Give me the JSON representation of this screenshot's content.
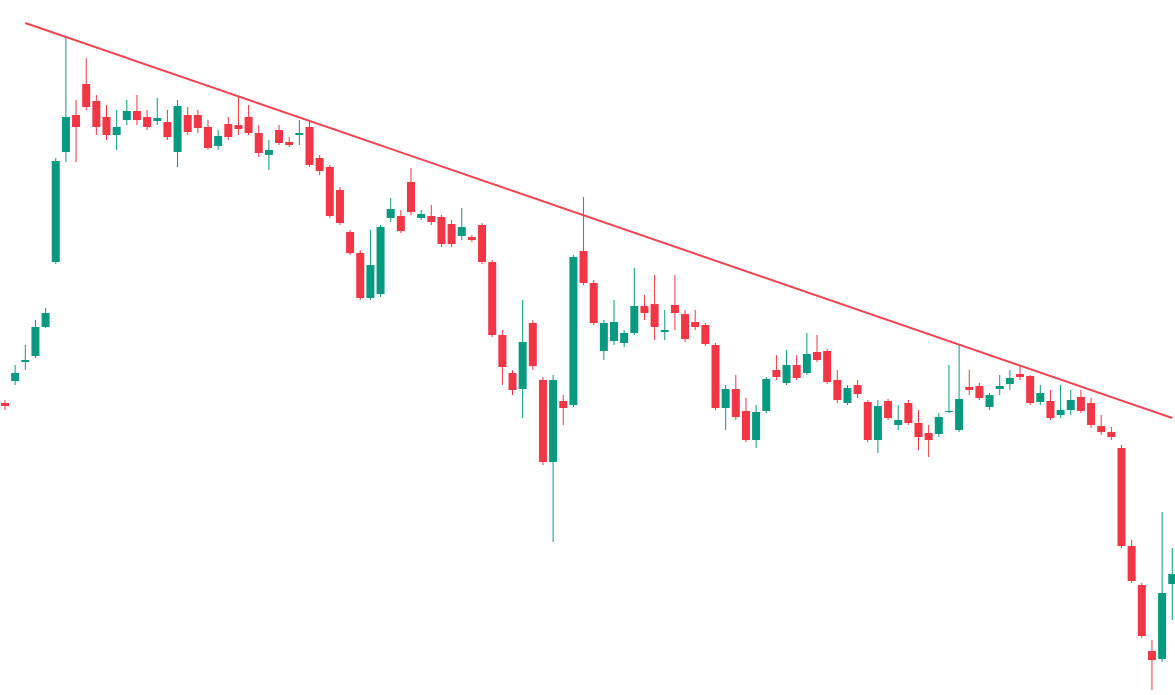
{
  "chart_data": {
    "type": "candlestick",
    "up_color": "#089981",
    "down_color": "#f23645",
    "ylim": [
      0,
      695
    ],
    "open": [
      292,
      314,
      333,
      339,
      368,
      433,
      543,
      580,
      611,
      594,
      578,
      560,
      575,
      584,
      578,
      574,
      573,
      543,
      580,
      580,
      568,
      549,
      571,
      570,
      578,
      562,
      540,
      565,
      553,
      560,
      568,
      537,
      528,
      505,
      463,
      442,
      397,
      401,
      477,
      479,
      513,
      477,
      479,
      478,
      471,
      459,
      458,
      470,
      433,
      360,
      322,
      306,
      372,
      315,
      233,
      294,
      290,
      444,
      412,
      344,
      354,
      352,
      362,
      389,
      391,
      363,
      390,
      381,
      373,
      370,
      350,
      287,
      306,
      284,
      255,
      284,
      325,
      312,
      330,
      322,
      343,
      344,
      315,
      292,
      310,
      293,
      255,
      294,
      270,
      292,
      272,
      262,
      261,
      283,
      265,
      308,
      309,
      288,
      306,
      311,
      321,
      319,
      293,
      294,
      280,
      285,
      298,
      292,
      269,
      263,
      247,
      149,
      110,
      44,
      36,
      111
    ],
    "high": [
      295,
      330,
      350,
      375,
      387,
      537,
      657,
      595,
      637,
      600,
      590,
      585,
      595,
      600,
      585,
      597,
      585,
      595,
      588,
      585,
      575,
      565,
      578,
      598,
      590,
      570,
      555,
      570,
      558,
      575,
      575,
      540,
      530,
      508,
      465,
      445,
      465,
      470,
      497,
      485,
      527,
      485,
      490,
      480,
      475,
      487,
      460,
      472,
      435,
      365,
      325,
      395,
      375,
      318,
      320,
      300,
      440,
      498,
      415,
      375,
      395,
      365,
      427,
      400,
      420,
      385,
      420,
      385,
      385,
      372,
      352,
      310,
      320,
      297,
      290,
      318,
      340,
      345,
      340,
      362,
      360,
      346,
      325,
      310,
      315,
      295,
      295,
      296,
      290,
      295,
      285,
      270,
      282,
      330,
      350,
      325,
      312,
      302,
      320,
      325,
      330,
      320,
      310,
      305,
      310,
      305,
      305,
      297,
      280,
      268,
      250,
      155,
      112,
      55,
      183,
      147
    ],
    "low": [
      285,
      310,
      325,
      337,
      367,
      431,
      533,
      533,
      585,
      560,
      555,
      545,
      570,
      570,
      565,
      570,
      555,
      528,
      560,
      562,
      545,
      545,
      555,
      560,
      560,
      538,
      525,
      550,
      548,
      550,
      528,
      520,
      477,
      470,
      440,
      395,
      395,
      398,
      473,
      462,
      480,
      475,
      470,
      448,
      448,
      455,
      453,
      431,
      358,
      310,
      300,
      277,
      325,
      230,
      153,
      270,
      288,
      410,
      370,
      335,
      350,
      348,
      360,
      375,
      355,
      355,
      365,
      353,
      365,
      349,
      285,
      265,
      275,
      253,
      247,
      282,
      315,
      310,
      315,
      320,
      333,
      311,
      292,
      290,
      297,
      253,
      242,
      275,
      265,
      270,
      245,
      238,
      258,
      282,
      263,
      300,
      295,
      285,
      300,
      305,
      315,
      290,
      290,
      275,
      277,
      280,
      282,
      267,
      260,
      255,
      147,
      112,
      57,
      5,
      33,
      75
    ],
    "close": [
      289,
      322,
      335,
      368,
      382,
      534,
      578,
      568,
      588,
      568,
      560,
      568,
      584,
      575,
      568,
      577,
      558,
      589,
      563,
      567,
      547,
      559,
      558,
      566,
      562,
      542,
      545,
      552,
      550,
      562,
      530,
      524,
      479,
      472,
      442,
      397,
      430,
      468,
      486,
      464,
      483,
      481,
      473,
      451,
      451,
      468,
      455,
      433,
      360,
      328,
      305,
      353,
      329,
      233,
      315,
      287,
      438,
      412,
      372,
      372,
      373,
      362,
      389,
      382,
      368,
      365,
      382,
      356,
      368,
      351,
      287,
      306,
      278,
      255,
      283,
      316,
      318,
      330,
      317,
      341,
      335,
      313,
      295,
      307,
      301,
      255,
      289,
      277,
      275,
      272,
      258,
      255,
      278,
      284,
      296,
      305,
      297,
      300,
      309,
      317,
      318,
      292,
      302,
      277,
      285,
      295,
      284,
      270,
      263,
      258,
      149,
      114,
      59,
      35,
      102,
      121
    ],
    "trendline": {
      "color": "#ef4452",
      "x": [
        2,
        115
      ],
      "values": [
        672,
        277
      ]
    }
  }
}
